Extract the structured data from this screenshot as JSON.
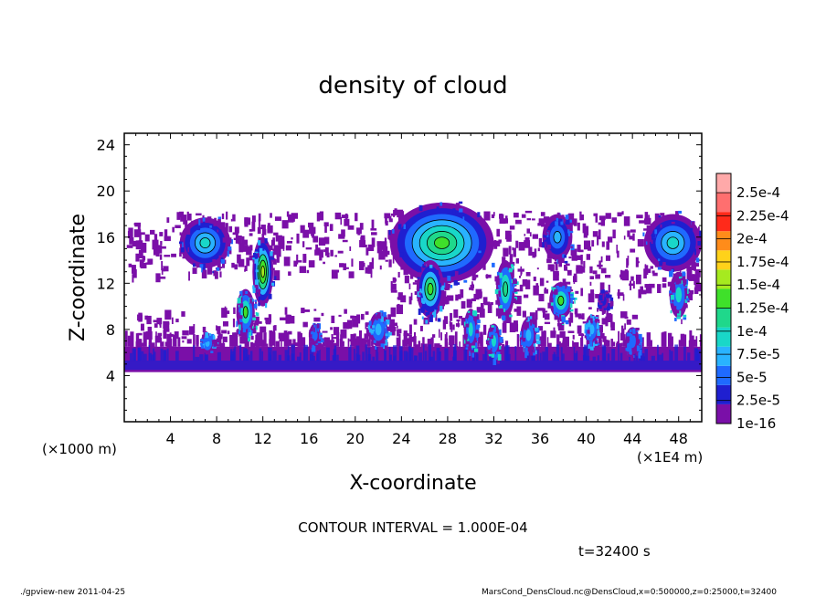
{
  "chart_data": {
    "type": "heatmap",
    "title": "density of cloud",
    "xlabel": "X-coordinate",
    "ylabel": "Z-coordinate",
    "x_unit_label": "(×1E4 m)",
    "y_unit_label": "(×1000 m)",
    "xlim": [
      0,
      50
    ],
    "ylim": [
      0,
      25
    ],
    "x_ticks": [
      4,
      8,
      12,
      16,
      20,
      24,
      28,
      32,
      36,
      40,
      44,
      48
    ],
    "y_ticks": [
      4,
      8,
      12,
      16,
      20,
      24
    ],
    "colorbar": {
      "labels": [
        "1e-16",
        "2.5e-5",
        "5e-5",
        "7.5e-5",
        "1e-4",
        "1.25e-4",
        "1.5e-4",
        "1.75e-4",
        "2e-4",
        "2.25e-4",
        "2.5e-4"
      ],
      "colors": [
        "#7a0fa8",
        "#1f1fd0",
        "#1f6aff",
        "#29b3ff",
        "#19d7c8",
        "#1fd88b",
        "#3fe02a",
        "#a6ea1f",
        "#ffd21a",
        "#ff8c1a",
        "#ff2a1a",
        "#ff6f6f",
        "#ffa9a9"
      ]
    },
    "contour_interval_text": "CONTOUR INTERVAL = 1.000E-04",
    "time_text": "t=32400 s",
    "regions": [
      {
        "type": "band",
        "x": [
          0,
          50
        ],
        "z": [
          4.3,
          6.5
        ],
        "level": 0
      },
      {
        "type": "band",
        "x": [
          0,
          50
        ],
        "z": [
          4.5,
          5.3
        ],
        "level": 1
      },
      {
        "type": "blob",
        "x": 7,
        "z": 15.5,
        "rx": 2.2,
        "rz": 2.2,
        "levels": [
          0,
          1,
          2,
          3,
          4
        ]
      },
      {
        "type": "blob",
        "x": 12,
        "z": 13,
        "rx": 0.9,
        "rz": 3.0,
        "levels": [
          0,
          1,
          3,
          5,
          6,
          7
        ]
      },
      {
        "type": "blob",
        "x": 10.5,
        "z": 9.5,
        "rx": 0.8,
        "rz": 2.0,
        "levels": [
          0,
          2,
          4,
          6
        ]
      },
      {
        "type": "blob",
        "x": 27.5,
        "z": 15.5,
        "rx": 4.5,
        "rz": 3.5,
        "levels": [
          0,
          1,
          2,
          3,
          4,
          5,
          6
        ]
      },
      {
        "type": "blob",
        "x": 26.5,
        "z": 11.5,
        "rx": 1.2,
        "rz": 2.5,
        "levels": [
          0,
          1,
          3,
          5,
          6
        ]
      },
      {
        "type": "blob",
        "x": 30,
        "z": 8,
        "rx": 0.6,
        "rz": 1.8,
        "levels": [
          0,
          2,
          4
        ]
      },
      {
        "type": "blob",
        "x": 33,
        "z": 11.5,
        "rx": 0.8,
        "rz": 2.5,
        "levels": [
          0,
          2,
          4,
          5
        ]
      },
      {
        "type": "blob",
        "x": 37.5,
        "z": 16,
        "rx": 1.3,
        "rz": 2.0,
        "levels": [
          0,
          1,
          2,
          3
        ]
      },
      {
        "type": "blob",
        "x": 37.8,
        "z": 10.5,
        "rx": 1.0,
        "rz": 1.6,
        "levels": [
          0,
          2,
          4,
          6
        ]
      },
      {
        "type": "blob",
        "x": 40.5,
        "z": 8,
        "rx": 0.6,
        "rz": 1.3,
        "levels": [
          0,
          2,
          3
        ]
      },
      {
        "type": "blob",
        "x": 47.5,
        "z": 15.5,
        "rx": 2.5,
        "rz": 2.5,
        "levels": [
          0,
          1,
          2,
          3,
          4
        ]
      },
      {
        "type": "blob",
        "x": 48,
        "z": 11,
        "rx": 0.8,
        "rz": 2.0,
        "levels": [
          0,
          2,
          4
        ]
      },
      {
        "type": "blob",
        "x": 22,
        "z": 8,
        "rx": 0.8,
        "rz": 1.5,
        "levels": [
          0,
          2,
          3
        ]
      },
      {
        "type": "blob",
        "x": 35,
        "z": 7.5,
        "rx": 0.7,
        "rz": 1.5,
        "levels": [
          0,
          2,
          3
        ]
      },
      {
        "type": "blob",
        "x": 32,
        "z": 7,
        "rx": 0.6,
        "rz": 1.5,
        "levels": [
          0,
          2,
          4
        ]
      },
      {
        "type": "blob",
        "x": 7.2,
        "z": 6.8,
        "rx": 0.6,
        "rz": 0.9,
        "levels": [
          0,
          2,
          3
        ]
      },
      {
        "type": "blob",
        "x": 44,
        "z": 7,
        "rx": 0.6,
        "rz": 1.2,
        "levels": [
          0,
          2
        ]
      },
      {
        "type": "blob",
        "x": 16.5,
        "z": 7.5,
        "rx": 0.5,
        "rz": 1.0,
        "levels": [
          0,
          2
        ]
      },
      {
        "type": "blob",
        "x": 41.5,
        "z": 10.5,
        "rx": 0.5,
        "rz": 0.9,
        "levels": [
          0,
          1
        ]
      },
      {
        "type": "haze",
        "x": [
          3,
          23
        ],
        "z": [
          13,
          18.3
        ],
        "level": 0
      },
      {
        "type": "haze",
        "x": [
          23,
          34
        ],
        "z": [
          10,
          18.5
        ],
        "level": 0
      },
      {
        "type": "haze",
        "x": [
          34,
          50
        ],
        "z": [
          11,
          18.3
        ],
        "level": 0
      },
      {
        "type": "haze",
        "x": [
          0,
          3.5
        ],
        "z": [
          12.5,
          17.5
        ],
        "level": 0
      },
      {
        "type": "haze",
        "x": [
          1,
          44
        ],
        "z": [
          6,
          10
        ],
        "level": 0
      }
    ]
  },
  "footer": {
    "left": "./gpview-new   2011-04-25",
    "right": "MarsCond_DensCloud.nc@DensCloud,x=0:500000,z=0:25000,t=32400"
  }
}
